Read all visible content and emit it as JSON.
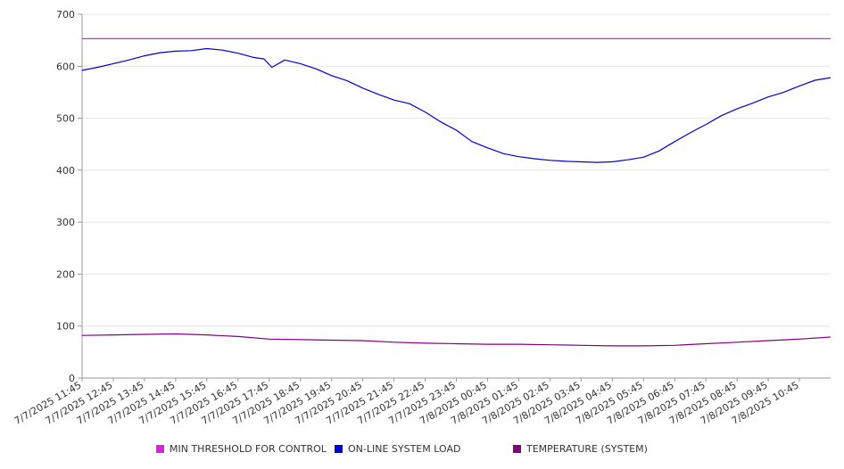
{
  "chart_data": {
    "type": "line",
    "title": "",
    "xlabel": "",
    "ylabel": "",
    "ylim": [
      0,
      700
    ],
    "yticks": [
      0,
      100,
      200,
      300,
      400,
      500,
      600,
      700
    ],
    "grid": true,
    "legend_position": "bottom",
    "x_start": "2025-07-07 11:45",
    "x_end": "2025-07-08 11:45",
    "xtick_labels": [
      "7/7/2025 11:45",
      "7/7/2025 12:45",
      "7/7/2025 13:45",
      "7/7/2025 14:45",
      "7/7/2025 15:45",
      "7/7/2025 16:45",
      "7/7/2025 17:45",
      "7/7/2025 18:45",
      "7/7/2025 19:45",
      "7/7/2025 20:45",
      "7/7/2025 21:45",
      "7/7/2025 22:45",
      "7/7/2025 23:45",
      "7/8/2025 00:45",
      "7/8/2025 01:45",
      "7/8/2025 02:45",
      "7/8/2025 03:45",
      "7/8/2025 04:45",
      "7/8/2025 05:45",
      "7/8/2025 06:45",
      "7/8/2025 07:45",
      "7/8/2025 08:45",
      "7/8/2025 09:45",
      "7/8/2025 10:45"
    ],
    "series": [
      {
        "name": "MIN THRESHOLD FOR CONTROL",
        "color": "#e020e0",
        "x": [
          "7/7/2025 11:45",
          "7/8/2025 11:45"
        ],
        "values": [
          653,
          653
        ]
      },
      {
        "name": "ON-LINE SYSTEM LOAD",
        "color": "#0000cc",
        "x": [
          "7/7/2025 11:45",
          "7/7/2025 12:15",
          "7/7/2025 12:45",
          "7/7/2025 13:15",
          "7/7/2025 13:45",
          "7/7/2025 14:15",
          "7/7/2025 14:45",
          "7/7/2025 15:15",
          "7/7/2025 15:45",
          "7/7/2025 16:15",
          "7/7/2025 16:45",
          "7/7/2025 17:15",
          "7/7/2025 17:35",
          "7/7/2025 17:50",
          "7/7/2025 18:15",
          "7/7/2025 18:45",
          "7/7/2025 19:15",
          "7/7/2025 19:45",
          "7/7/2025 20:15",
          "7/7/2025 20:45",
          "7/7/2025 21:15",
          "7/7/2025 21:45",
          "7/7/2025 22:15",
          "7/7/2025 22:45",
          "7/7/2025 23:15",
          "7/7/2025 23:45",
          "7/8/2025 00:15",
          "7/8/2025 00:45",
          "7/8/2025 01:15",
          "7/8/2025 01:45",
          "7/8/2025 02:15",
          "7/8/2025 02:45",
          "7/8/2025 03:15",
          "7/8/2025 03:45",
          "7/8/2025 04:15",
          "7/8/2025 04:45",
          "7/8/2025 05:15",
          "7/8/2025 05:45",
          "7/8/2025 06:15",
          "7/8/2025 06:45",
          "7/8/2025 07:15",
          "7/8/2025 07:45",
          "7/8/2025 08:15",
          "7/8/2025 08:45",
          "7/8/2025 09:15",
          "7/8/2025 09:45",
          "7/8/2025 10:15",
          "7/8/2025 10:45",
          "7/8/2025 11:15",
          "7/8/2025 11:45"
        ],
        "values": [
          592,
          598,
          605,
          612,
          620,
          626,
          629,
          630,
          634,
          631,
          625,
          617,
          614,
          598,
          612,
          605,
          595,
          582,
          572,
          558,
          546,
          535,
          528,
          512,
          493,
          477,
          455,
          443,
          432,
          426,
          422,
          419,
          417,
          416,
          415,
          416,
          420,
          425,
          437,
          455,
          472,
          488,
          505,
          518,
          529,
          541,
          550,
          562,
          573,
          578
        ]
      },
      {
        "name": "TEMPERATURE (SYSTEM)",
        "color": "#800080",
        "x": [
          "7/7/2025 11:45",
          "7/7/2025 12:45",
          "7/7/2025 13:45",
          "7/7/2025 14:45",
          "7/7/2025 15:45",
          "7/7/2025 16:45",
          "7/7/2025 17:45",
          "7/7/2025 18:45",
          "7/7/2025 19:45",
          "7/7/2025 20:45",
          "7/7/2025 21:45",
          "7/7/2025 22:45",
          "7/7/2025 23:45",
          "7/8/2025 00:45",
          "7/8/2025 01:45",
          "7/8/2025 02:45",
          "7/8/2025 03:45",
          "7/8/2025 04:45",
          "7/8/2025 05:45",
          "7/8/2025 06:45",
          "7/8/2025 07:45",
          "7/8/2025 08:45",
          "7/8/2025 09:45",
          "7/8/2025 10:45",
          "7/8/2025 11:45"
        ],
        "values": [
          82,
          83,
          84,
          85,
          83,
          80,
          75,
          74,
          73,
          72,
          69,
          67,
          66,
          65,
          65,
          64,
          63,
          62,
          62,
          63,
          66,
          69,
          72,
          75,
          79
        ]
      }
    ]
  }
}
